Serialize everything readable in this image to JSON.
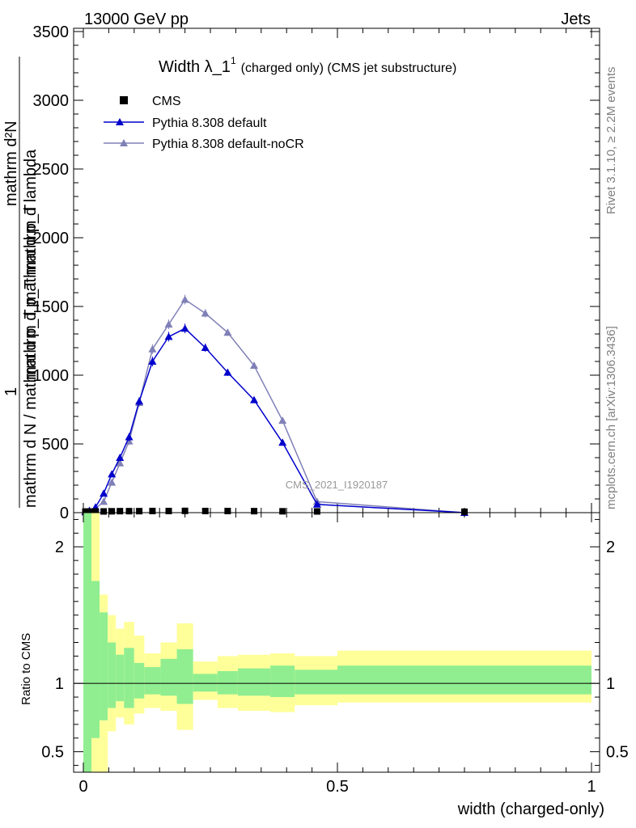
{
  "header": {
    "left": "13000 GeV pp",
    "right": "Jets"
  },
  "side_labels": {
    "rivet": "Rivet 3.1.10, ≥ 2.2M events",
    "mcplots": "mcplots.cern.ch [arXiv:1306.3436]"
  },
  "chart_data": [
    {
      "type": "line",
      "title_main": "Width λ_1",
      "title_sup": "1",
      "title_rest": "(charged only) (CMS jet substructure)",
      "analysis_tag": "CMS_2021_I1920187",
      "ylabel_parts": {
        "one": "1",
        "denominator": "mathrm d N / mathrm d p_T mathrm d p_T",
        "numerator": "mathrm d²N",
        "numerator2": "mathrm d p_T mathrm d lambda"
      },
      "xlim": [
        0,
        1
      ],
      "ylim": [
        0,
        3500
      ],
      "yticks": [
        0,
        500,
        1000,
        1500,
        2000,
        2500,
        3000,
        3500
      ],
      "ytick_labels": [
        "0",
        "500",
        "1000",
        "1500",
        "2000",
        "2500",
        "3000",
        "3500"
      ],
      "legend_position": "top-left",
      "series": [
        {
          "name": "CMS",
          "color": "#000000",
          "marker": "square",
          "x": [
            0.004,
            0.012,
            0.024,
            0.04,
            0.056,
            0.072,
            0.09,
            0.11,
            0.136,
            0.168,
            0.2,
            0.24,
            0.284,
            0.336,
            0.392,
            0.46,
            0.75
          ],
          "y": [
            2,
            2,
            3,
            3,
            4,
            5,
            5,
            5,
            6,
            6,
            7,
            6,
            6,
            5,
            4,
            3,
            1
          ]
        },
        {
          "name": "Pythia 8.308 default",
          "color": "#0000cc",
          "marker": "triangle",
          "x": [
            0.004,
            0.012,
            0.024,
            0.04,
            0.056,
            0.072,
            0.09,
            0.11,
            0.136,
            0.168,
            0.2,
            0.24,
            0.284,
            0.336,
            0.392,
            0.46,
            0.75
          ],
          "y": [
            5,
            15,
            40,
            140,
            280,
            400,
            550,
            810,
            1100,
            1280,
            1340,
            1200,
            1020,
            820,
            510,
            60,
            0
          ],
          "err": [
            3,
            5,
            8,
            15,
            20,
            25,
            30,
            30,
            35,
            35,
            35,
            30,
            25,
            20,
            15,
            5,
            0
          ]
        },
        {
          "name": "Pythia 8.308 default-noCR",
          "color": "#8080b8",
          "marker": "triangle",
          "x": [
            0.004,
            0.012,
            0.024,
            0.04,
            0.056,
            0.072,
            0.09,
            0.11,
            0.136,
            0.168,
            0.2,
            0.24,
            0.284,
            0.336,
            0.392,
            0.46,
            0.75
          ],
          "y": [
            4,
            10,
            30,
            80,
            220,
            360,
            520,
            800,
            1190,
            1370,
            1550,
            1450,
            1310,
            1070,
            670,
            80,
            0
          ],
          "err": [
            3,
            5,
            8,
            12,
            18,
            22,
            28,
            30,
            35,
            35,
            35,
            30,
            25,
            20,
            15,
            5,
            0
          ]
        }
      ]
    },
    {
      "type": "area",
      "ylabel": "Ratio to CMS",
      "xlabel": "width (charged-only)",
      "xlim": [
        0,
        1
      ],
      "ylim": [
        0.35,
        2.25
      ],
      "xticks": [
        0,
        0.5,
        1
      ],
      "xtick_labels": [
        "0",
        "0.5",
        "1"
      ],
      "yticks": [
        0.5,
        1,
        2
      ],
      "ytick_labels": [
        "0.5",
        "1",
        "2"
      ],
      "band_colors": {
        "inner": "#90ee90",
        "outer": "#ffff99"
      },
      "bin_edges": [
        0,
        0.008,
        0.016,
        0.032,
        0.048,
        0.064,
        0.08,
        0.1,
        0.12,
        0.152,
        0.184,
        0.216,
        0.264,
        0.304,
        0.368,
        0.416,
        0.5,
        1.0
      ],
      "outer_band": [
        [
          0.3,
          2.25
        ],
        [
          0.3,
          2.25
        ],
        [
          0.3,
          2.25
        ],
        [
          0.3,
          1.65
        ],
        [
          0.65,
          1.5
        ],
        [
          0.75,
          1.4
        ],
        [
          0.7,
          1.45
        ],
        [
          0.78,
          1.35
        ],
        [
          0.82,
          1.22
        ],
        [
          0.8,
          1.3
        ],
        [
          0.66,
          1.44
        ],
        [
          0.88,
          1.16
        ],
        [
          0.82,
          1.2
        ],
        [
          0.8,
          1.21
        ],
        [
          0.79,
          1.22
        ],
        [
          0.84,
          1.2
        ],
        [
          0.86,
          1.24
        ]
      ],
      "inner_band": [
        [
          0.3,
          2.25
        ],
        [
          0.3,
          2.25
        ],
        [
          0.6,
          1.75
        ],
        [
          0.73,
          1.52
        ],
        [
          0.82,
          1.3
        ],
        [
          0.87,
          1.21
        ],
        [
          0.82,
          1.26
        ],
        [
          0.89,
          1.15
        ],
        [
          0.92,
          1.12
        ],
        [
          0.91,
          1.18
        ],
        [
          0.85,
          1.25
        ],
        [
          0.94,
          1.07
        ],
        [
          0.92,
          1.09
        ],
        [
          0.91,
          1.11
        ],
        [
          0.9,
          1.13
        ],
        [
          0.92,
          1.1
        ],
        [
          0.92,
          1.13
        ]
      ]
    }
  ]
}
